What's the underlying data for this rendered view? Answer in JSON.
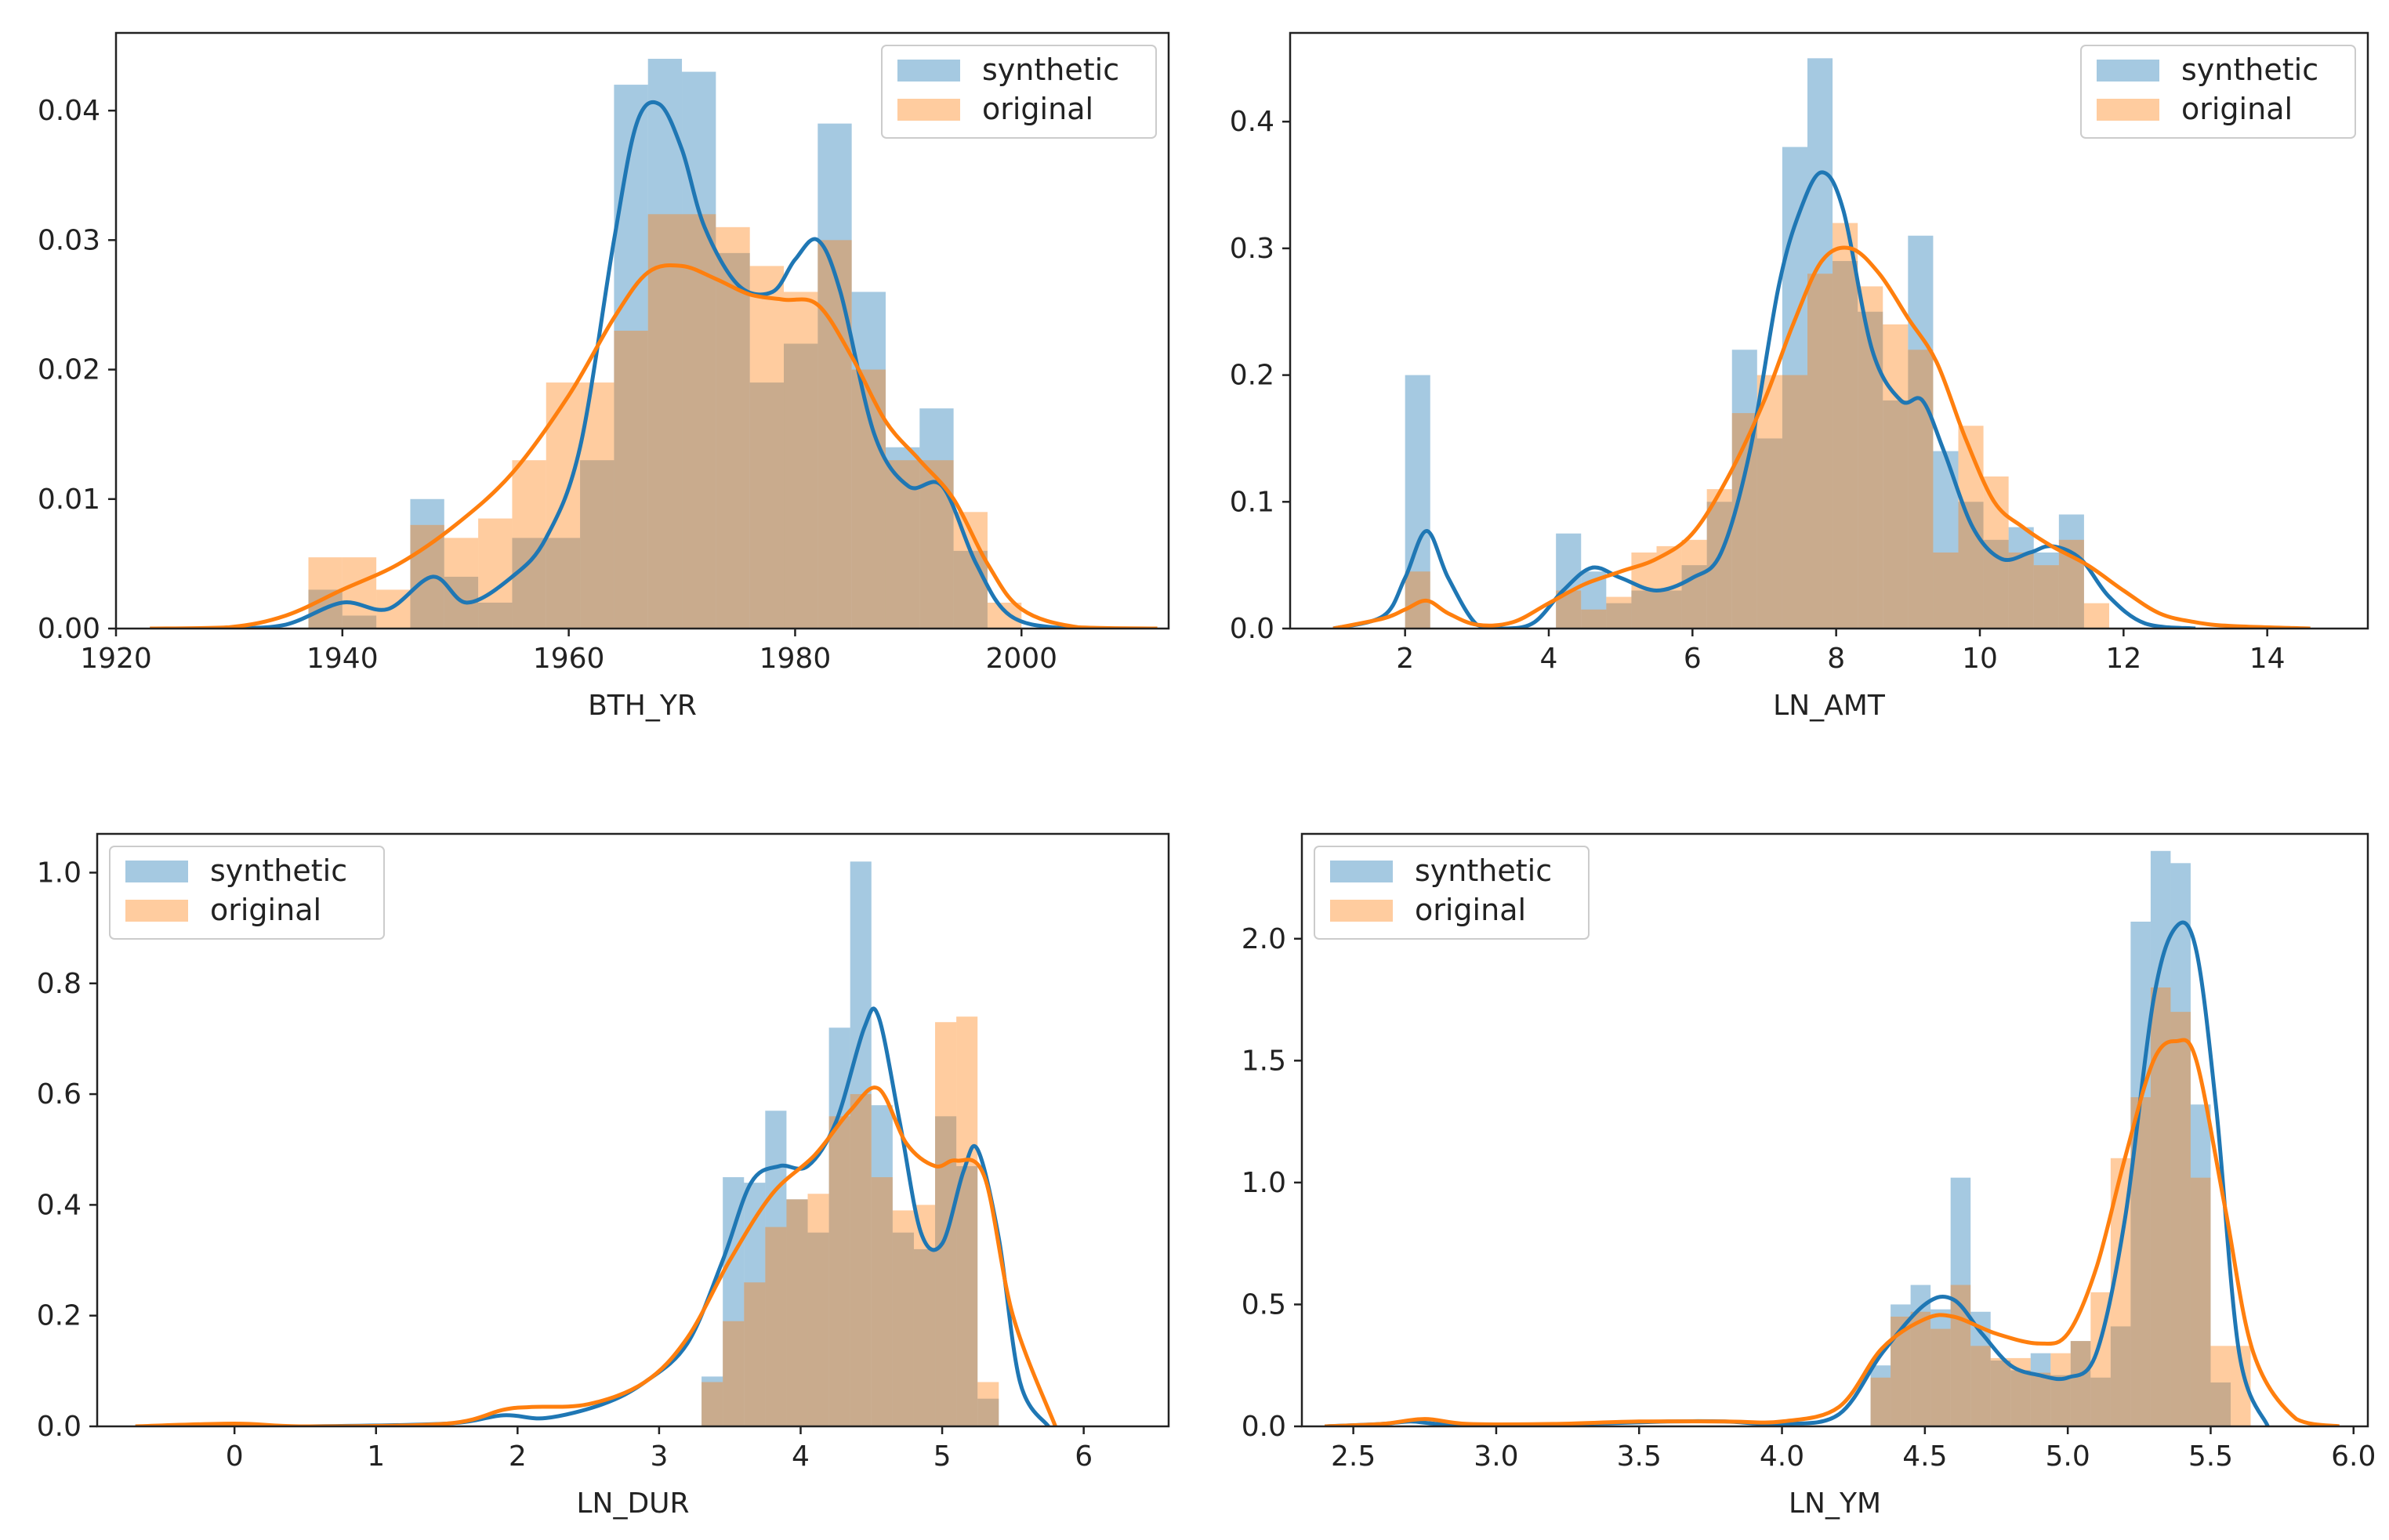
{
  "colors": {
    "synthetic_fill": "#1f77b4",
    "original_fill": "#ff7f0e",
    "synthetic_line": "#1f77b4",
    "original_line": "#ff7f0e",
    "axis": "#222222"
  },
  "chart_data": [
    {
      "type": "bar",
      "title": "",
      "xlabel": "BTH_YR",
      "ylabel": "",
      "xlim": [
        1920,
        2013
      ],
      "ylim": [
        0,
        0.046
      ],
      "xticks": [
        1920,
        1940,
        1960,
        1980,
        2000
      ],
      "xtick_labels": [
        "1920",
        "1940",
        "1960",
        "1980",
        "2000"
      ],
      "yticks": [
        0,
        0.01,
        0.02,
        0.03,
        0.04
      ],
      "ytick_labels": [
        "0.00",
        "0.01",
        "0.02",
        "0.03",
        "0.04"
      ],
      "legend": {
        "position": "top-right",
        "entries": [
          "synthetic",
          "original"
        ]
      },
      "grid": false,
      "bin_edges": [
        1937,
        1940,
        1943,
        1946,
        1949,
        1952,
        1955,
        1958,
        1961,
        1964,
        1967,
        1970,
        1973,
        1976,
        1979,
        1982,
        1985,
        1988,
        1991,
        1994,
        1997,
        2000
      ],
      "series": [
        {
          "name": "synthetic",
          "histogram": [
            0.003,
            0.001,
            0.0,
            0.01,
            0.004,
            0.002,
            0.007,
            0.007,
            0.013,
            0.042,
            0.044,
            0.043,
            0.029,
            0.019,
            0.022,
            0.039,
            0.026,
            0.014,
            0.017,
            0.006,
            0.0
          ],
          "kde_x": [
            1923,
            1930,
            1935,
            1940,
            1944,
            1948,
            1951,
            1955,
            1958,
            1961,
            1964,
            1966,
            1968,
            1970,
            1972,
            1975,
            1978,
            1980,
            1982,
            1984,
            1987,
            1990,
            1993,
            1996,
            1999,
            2004,
            2010
          ],
          "kde_y": [
            0.0,
            0.0,
            0.0003,
            0.002,
            0.0015,
            0.004,
            0.002,
            0.004,
            0.007,
            0.014,
            0.03,
            0.039,
            0.0405,
            0.037,
            0.031,
            0.0265,
            0.026,
            0.0285,
            0.03,
            0.026,
            0.015,
            0.011,
            0.011,
            0.005,
            0.001,
            0.0,
            0.0
          ]
        },
        {
          "name": "original",
          "histogram": [
            0.0055,
            0.0055,
            0.003,
            0.008,
            0.007,
            0.0085,
            0.013,
            0.019,
            0.019,
            0.023,
            0.032,
            0.032,
            0.031,
            0.028,
            0.026,
            0.03,
            0.02,
            0.013,
            0.013,
            0.009,
            0.002
          ],
          "kde_x": [
            1923,
            1930,
            1935,
            1940,
            1945,
            1950,
            1955,
            1960,
            1964,
            1967,
            1970,
            1973,
            1976,
            1979,
            1982,
            1985,
            1988,
            1991,
            1994,
            1997,
            2000,
            2005,
            2012
          ],
          "kde_y": [
            0.0,
            0.0001,
            0.001,
            0.003,
            0.005,
            0.008,
            0.012,
            0.018,
            0.024,
            0.0275,
            0.028,
            0.027,
            0.0258,
            0.0254,
            0.025,
            0.021,
            0.016,
            0.013,
            0.01,
            0.005,
            0.0015,
            0.0001,
            0.0
          ]
        }
      ]
    },
    {
      "type": "bar",
      "title": "",
      "xlabel": "LN_AMT",
      "ylabel": "",
      "xlim": [
        0.4,
        15.4
      ],
      "ylim": [
        0,
        0.47
      ],
      "xticks": [
        2,
        4,
        6,
        8,
        10,
        12,
        14
      ],
      "xtick_labels": [
        "2",
        "4",
        "6",
        "8",
        "10",
        "12",
        "14"
      ],
      "yticks": [
        0,
        0.1,
        0.2,
        0.3,
        0.4
      ],
      "ytick_labels": [
        "0.0",
        "0.1",
        "0.2",
        "0.3",
        "0.4"
      ],
      "legend": {
        "position": "top-right",
        "entries": [
          "synthetic",
          "original"
        ]
      },
      "grid": false,
      "bin_edges": [
        2.0,
        2.35,
        2.7,
        3.05,
        3.4,
        3.75,
        4.1,
        4.45,
        4.8,
        5.15,
        5.5,
        5.85,
        6.2,
        6.55,
        6.9,
        7.25,
        7.6,
        7.95,
        8.3,
        8.65,
        9.0,
        9.35,
        9.7,
        10.05,
        10.4,
        10.75,
        11.1,
        11.45,
        11.8
      ],
      "series": [
        {
          "name": "synthetic",
          "histogram": [
            0.2,
            0.0,
            0.0,
            0.0,
            0.0,
            0.0,
            0.075,
            0.045,
            0.02,
            0.03,
            0.03,
            0.05,
            0.1,
            0.22,
            0.15,
            0.38,
            0.45,
            0.29,
            0.25,
            0.18,
            0.31,
            0.14,
            0.1,
            0.07,
            0.08,
            0.06,
            0.09,
            0.0
          ],
          "kde_x": [
            1.0,
            1.7,
            2.0,
            2.3,
            2.6,
            3.0,
            3.4,
            3.8,
            4.2,
            4.6,
            5.0,
            5.5,
            6.0,
            6.4,
            6.8,
            7.2,
            7.5,
            7.8,
            8.1,
            8.5,
            8.9,
            9.2,
            9.5,
            9.9,
            10.3,
            10.7,
            11.0,
            11.4,
            11.8,
            12.3,
            13.0
          ],
          "kde_y": [
            0.0,
            0.01,
            0.04,
            0.077,
            0.04,
            0.003,
            0.0,
            0.005,
            0.03,
            0.048,
            0.04,
            0.03,
            0.04,
            0.06,
            0.14,
            0.27,
            0.33,
            0.36,
            0.33,
            0.22,
            0.18,
            0.18,
            0.14,
            0.08,
            0.055,
            0.06,
            0.065,
            0.055,
            0.025,
            0.004,
            0.0
          ]
        },
        {
          "name": "original",
          "histogram": [
            0.045,
            0.0,
            0.0,
            0.0,
            0.0,
            0.0,
            0.03,
            0.015,
            0.025,
            0.06,
            0.065,
            0.07,
            0.11,
            0.17,
            0.2,
            0.2,
            0.28,
            0.32,
            0.27,
            0.24,
            0.22,
            0.06,
            0.16,
            0.12,
            0.06,
            0.05,
            0.07,
            0.02
          ],
          "kde_x": [
            1.0,
            1.7,
            2.0,
            2.3,
            2.6,
            3.0,
            3.5,
            4.0,
            4.5,
            5.0,
            5.5,
            6.0,
            6.5,
            7.0,
            7.4,
            7.8,
            8.2,
            8.6,
            9.0,
            9.4,
            9.8,
            10.2,
            10.6,
            11.0,
            11.5,
            12.0,
            12.5,
            13.0,
            13.5,
            14.6
          ],
          "kde_y": [
            0.0,
            0.008,
            0.015,
            0.022,
            0.012,
            0.003,
            0.005,
            0.02,
            0.035,
            0.045,
            0.055,
            0.075,
            0.12,
            0.18,
            0.24,
            0.29,
            0.3,
            0.28,
            0.245,
            0.21,
            0.15,
            0.1,
            0.08,
            0.065,
            0.05,
            0.03,
            0.012,
            0.005,
            0.002,
            0.0
          ]
        }
      ]
    },
    {
      "type": "bar",
      "title": "",
      "xlabel": "LN_DUR",
      "ylabel": "",
      "xlim": [
        -0.97,
        6.6
      ],
      "ylim": [
        0,
        1.07
      ],
      "xticks": [
        0,
        1,
        2,
        3,
        4,
        5,
        6
      ],
      "xtick_labels": [
        "0",
        "1",
        "2",
        "3",
        "4",
        "5",
        "6"
      ],
      "yticks": [
        0,
        0.2,
        0.4,
        0.6,
        0.8,
        1.0
      ],
      "ytick_labels": [
        "0.0",
        "0.2",
        "0.4",
        "0.6",
        "0.8",
        "1.0"
      ],
      "legend": {
        "position": "top-left",
        "entries": [
          "synthetic",
          "original"
        ]
      },
      "grid": false,
      "bin_edges": [
        3.3,
        3.45,
        3.6,
        3.75,
        3.9,
        4.05,
        4.2,
        4.35,
        4.5,
        4.65,
        4.8,
        4.95,
        5.1,
        5.25,
        5.4,
        5.55
      ],
      "series": [
        {
          "name": "synthetic",
          "histogram": [
            0.09,
            0.45,
            0.44,
            0.57,
            0.41,
            0.35,
            0.72,
            1.02,
            0.58,
            0.35,
            0.32,
            0.56,
            0.47,
            0.05,
            0.0
          ],
          "kde_x": [
            -0.7,
            0.5,
            1.5,
            1.9,
            2.2,
            2.6,
            2.9,
            3.2,
            3.45,
            3.65,
            3.85,
            4.05,
            4.25,
            4.45,
            4.55,
            4.7,
            4.85,
            5.0,
            5.15,
            5.25,
            5.4,
            5.55,
            5.75
          ],
          "kde_y": [
            0.0,
            0.0,
            0.005,
            0.02,
            0.015,
            0.04,
            0.08,
            0.15,
            0.3,
            0.44,
            0.47,
            0.47,
            0.55,
            0.72,
            0.74,
            0.55,
            0.35,
            0.33,
            0.46,
            0.5,
            0.34,
            0.08,
            0.0
          ]
        },
        {
          "name": "original",
          "histogram": [
            0.08,
            0.19,
            0.26,
            0.36,
            0.41,
            0.42,
            0.56,
            0.6,
            0.45,
            0.39,
            0.4,
            0.73,
            0.74,
            0.08,
            0.0
          ],
          "kde_x": [
            -0.7,
            0.0,
            0.5,
            1.5,
            1.9,
            2.1,
            2.5,
            2.9,
            3.2,
            3.5,
            3.8,
            4.1,
            4.35,
            4.55,
            4.75,
            4.95,
            5.1,
            5.3,
            5.5,
            5.8
          ],
          "kde_y": [
            0.0,
            0.005,
            0.0,
            0.005,
            0.03,
            0.035,
            0.04,
            0.08,
            0.16,
            0.3,
            0.42,
            0.49,
            0.57,
            0.61,
            0.51,
            0.47,
            0.48,
            0.45,
            0.2,
            0.0
          ]
        }
      ]
    },
    {
      "type": "bar",
      "title": "",
      "xlabel": "LN_YM",
      "ylabel": "",
      "xlim": [
        2.32,
        6.05
      ],
      "ylim": [
        0,
        2.43
      ],
      "xticks": [
        2.5,
        3.0,
        3.5,
        4.0,
        4.5,
        5.0,
        5.5,
        6.0
      ],
      "xtick_labels": [
        "2.5",
        "3.0",
        "3.5",
        "4.0",
        "4.5",
        "5.0",
        "5.5",
        "6.0"
      ],
      "yticks": [
        0,
        0.5,
        1.0,
        1.5,
        2.0
      ],
      "ytick_labels": [
        "0.0",
        "0.5",
        "1.0",
        "1.5",
        "2.0"
      ],
      "legend": {
        "position": "top-left",
        "entries": [
          "synthetic",
          "original"
        ]
      },
      "grid": false,
      "bin_edges": [
        4.31,
        4.38,
        4.45,
        4.52,
        4.59,
        4.66,
        4.73,
        4.8,
        4.87,
        4.94,
        5.01,
        5.08,
        5.15,
        5.22,
        5.29,
        5.36,
        5.43,
        5.5,
        5.57,
        5.64
      ],
      "series": [
        {
          "name": "synthetic",
          "histogram": [
            0.25,
            0.5,
            0.58,
            0.48,
            1.02,
            0.47,
            0.27,
            0.23,
            0.3,
            0.21,
            0.35,
            0.2,
            0.41,
            2.07,
            2.36,
            2.31,
            1.32,
            0.18,
            0.0
          ],
          "kde_x": [
            2.4,
            2.6,
            2.7,
            2.8,
            3.0,
            3.3,
            3.6,
            3.8,
            4.0,
            4.2,
            4.35,
            4.5,
            4.6,
            4.7,
            4.8,
            4.9,
            5.0,
            5.1,
            5.2,
            5.3,
            5.38,
            5.45,
            5.52,
            5.6,
            5.7
          ],
          "kde_y": [
            0.0,
            0.01,
            0.02,
            0.01,
            0.005,
            0.01,
            0.02,
            0.02,
            0.01,
            0.05,
            0.3,
            0.5,
            0.52,
            0.38,
            0.25,
            0.21,
            0.2,
            0.3,
            0.85,
            1.75,
            2.05,
            1.95,
            1.3,
            0.3,
            0.0
          ]
        },
        {
          "name": "original",
          "histogram": [
            0.2,
            0.45,
            0.47,
            0.4,
            0.58,
            0.33,
            0.28,
            0.28,
            0.22,
            0.3,
            0.35,
            0.55,
            1.1,
            1.35,
            1.8,
            1.7,
            1.02,
            0.33,
            0.33
          ],
          "kde_x": [
            2.4,
            2.6,
            2.75,
            2.9,
            3.2,
            3.5,
            3.8,
            4.0,
            4.2,
            4.35,
            4.5,
            4.6,
            4.75,
            4.9,
            5.0,
            5.1,
            5.2,
            5.3,
            5.38,
            5.45,
            5.55,
            5.65,
            5.8,
            5.95
          ],
          "kde_y": [
            0.0,
            0.01,
            0.03,
            0.01,
            0.01,
            0.02,
            0.02,
            0.02,
            0.08,
            0.32,
            0.44,
            0.45,
            0.38,
            0.34,
            0.38,
            0.65,
            1.1,
            1.5,
            1.58,
            1.5,
            0.9,
            0.3,
            0.03,
            0.0
          ]
        }
      ]
    }
  ]
}
